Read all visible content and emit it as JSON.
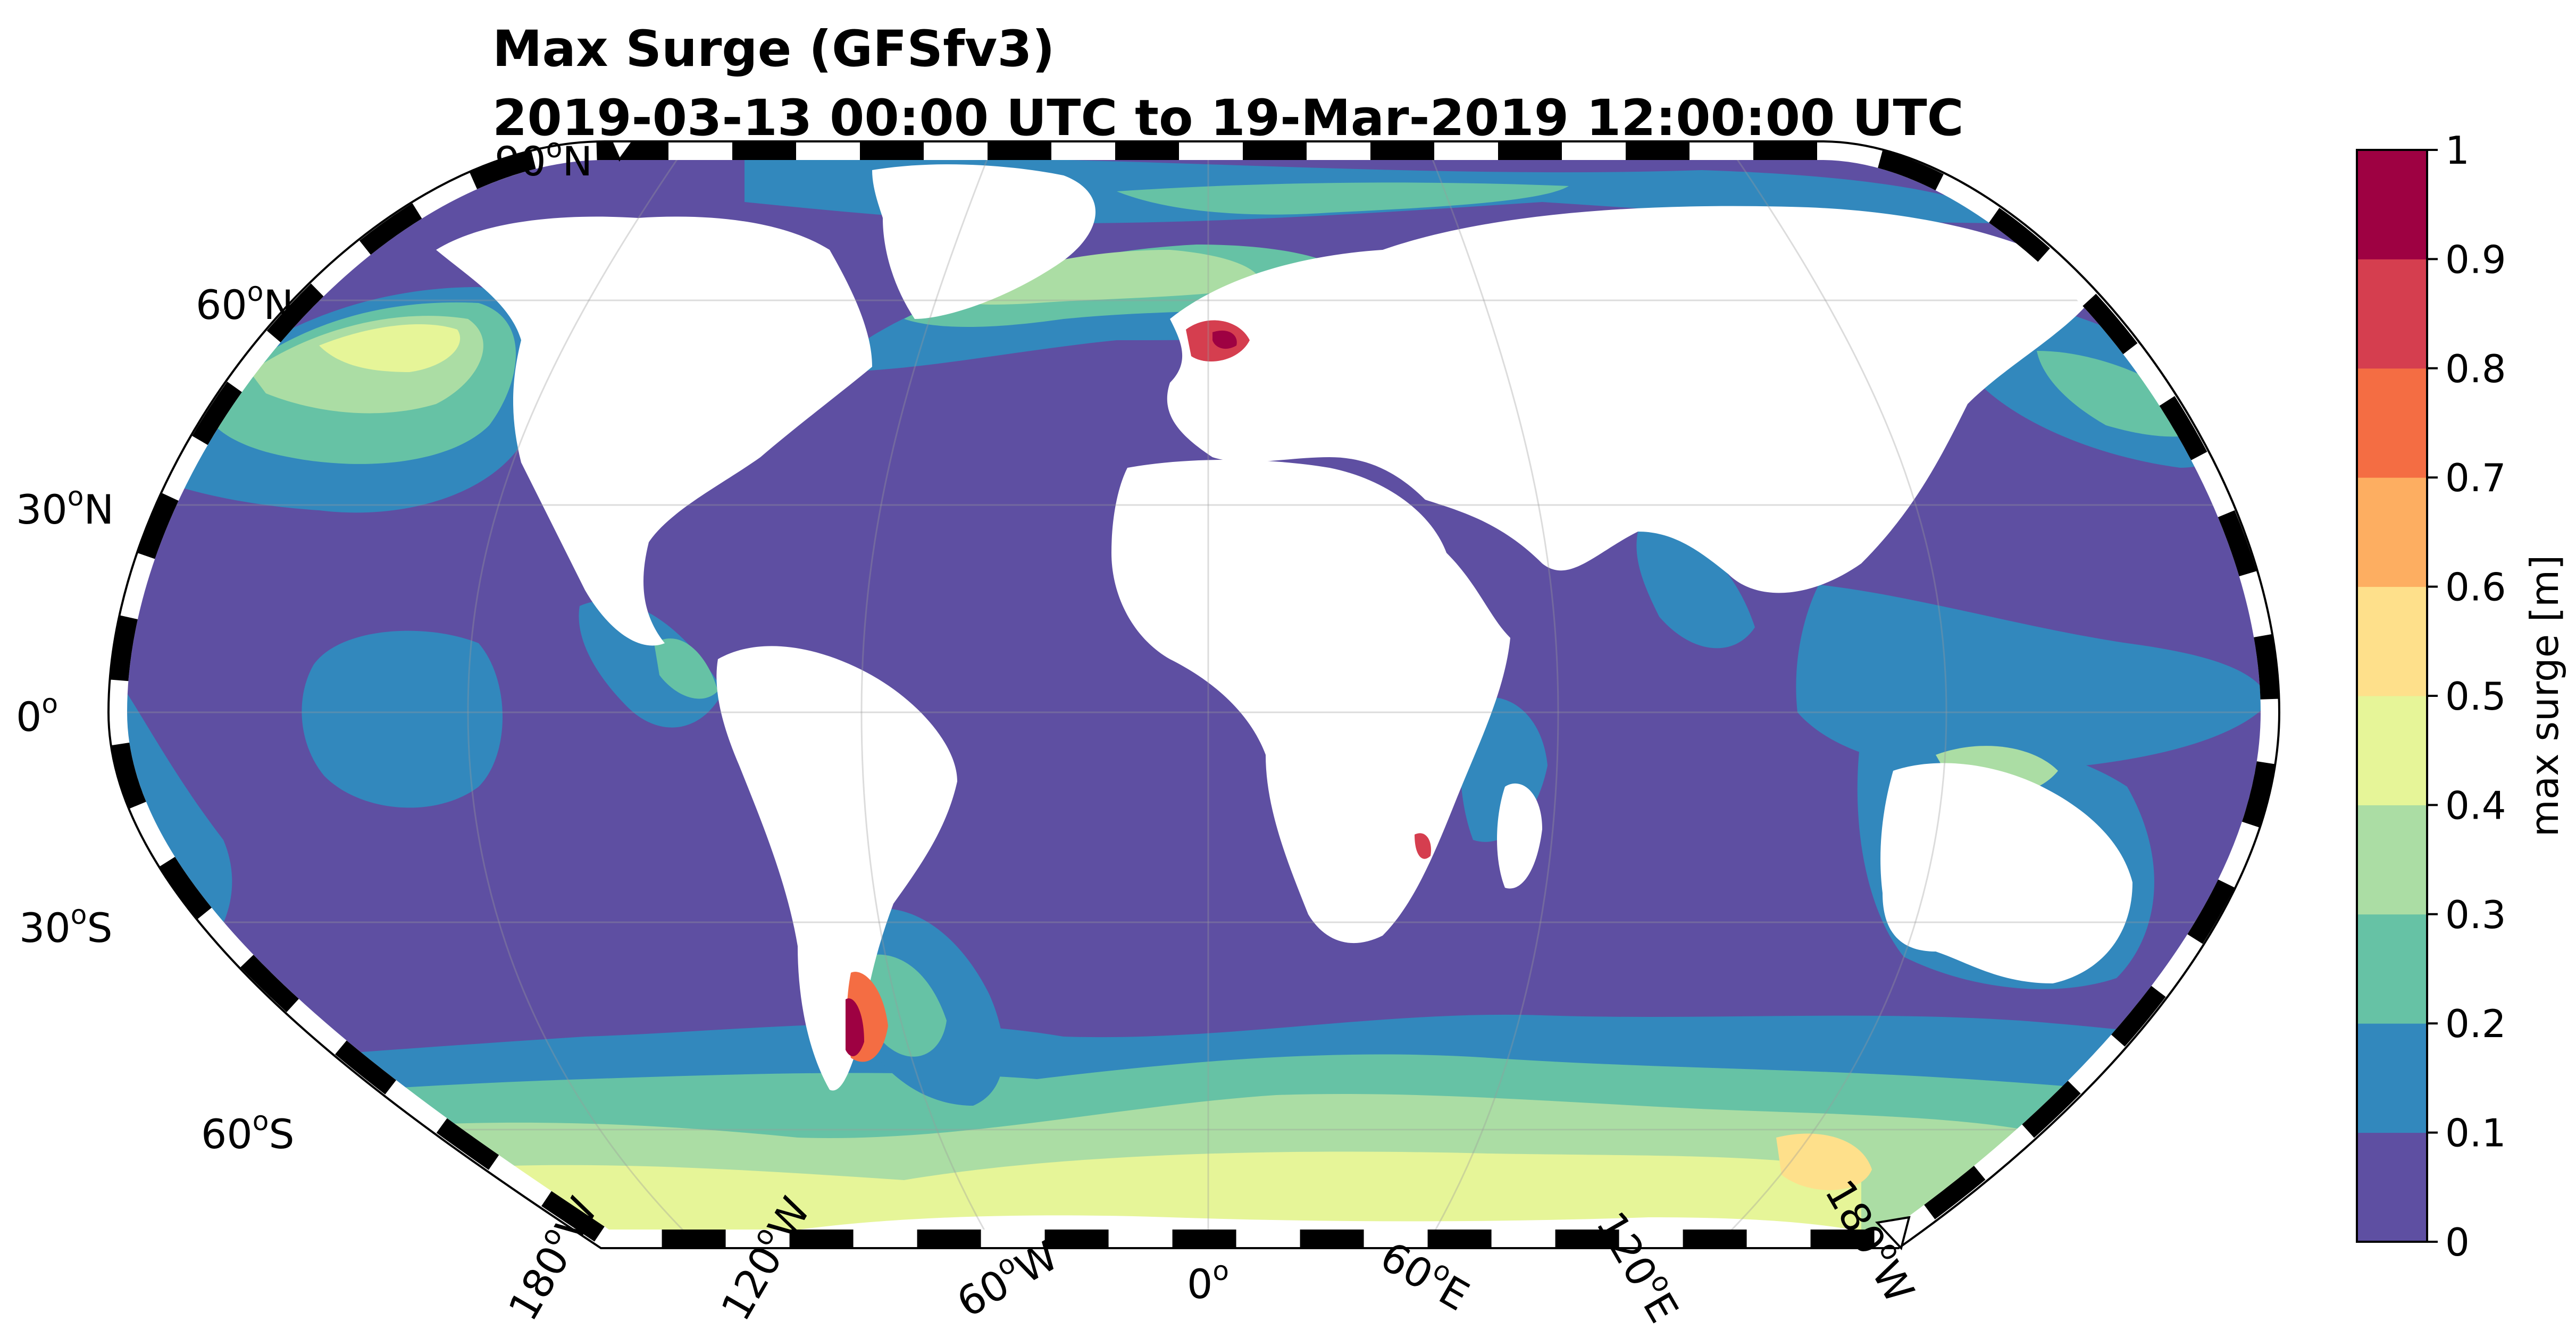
{
  "title": "Max Surge (GFSfv3)",
  "subtitle": "2019-03-13 00:00 UTC to 19-Mar-2019 12:00:00 UTC",
  "map": {
    "projection": "Robinson",
    "central_longitude": 0,
    "lat_labels": [
      {
        "deg": "90",
        "hem": "N"
      },
      {
        "deg": "60",
        "hem": "N"
      },
      {
        "deg": "30",
        "hem": "N"
      },
      {
        "deg": "0",
        "hem": ""
      },
      {
        "deg": "30",
        "hem": "S"
      },
      {
        "deg": "60",
        "hem": "S"
      }
    ],
    "lon_labels": [
      {
        "deg": "180",
        "hem": "W"
      },
      {
        "deg": "120",
        "hem": "W"
      },
      {
        "deg": "60",
        "hem": "W"
      },
      {
        "deg": "0",
        "hem": ""
      },
      {
        "deg": "60",
        "hem": "E"
      },
      {
        "deg": "120",
        "hem": "E"
      },
      {
        "deg": "180",
        "hem": "W"
      }
    ],
    "land_color": "#ffffff",
    "ocean_base_color": "#5e4fa2"
  },
  "colorbar": {
    "label": "max surge [m]",
    "ticks": [
      "0",
      "0.1",
      "0.2",
      "0.3",
      "0.4",
      "0.5",
      "0.6",
      "0.7",
      "0.8",
      "0.9",
      "1"
    ],
    "colors": [
      "#5e4fa2",
      "#3288bd",
      "#66c2a5",
      "#abdda4",
      "#e6f598",
      "#fee08b",
      "#fdae61",
      "#f46d43",
      "#d53e4f",
      "#9e0142"
    ]
  }
}
